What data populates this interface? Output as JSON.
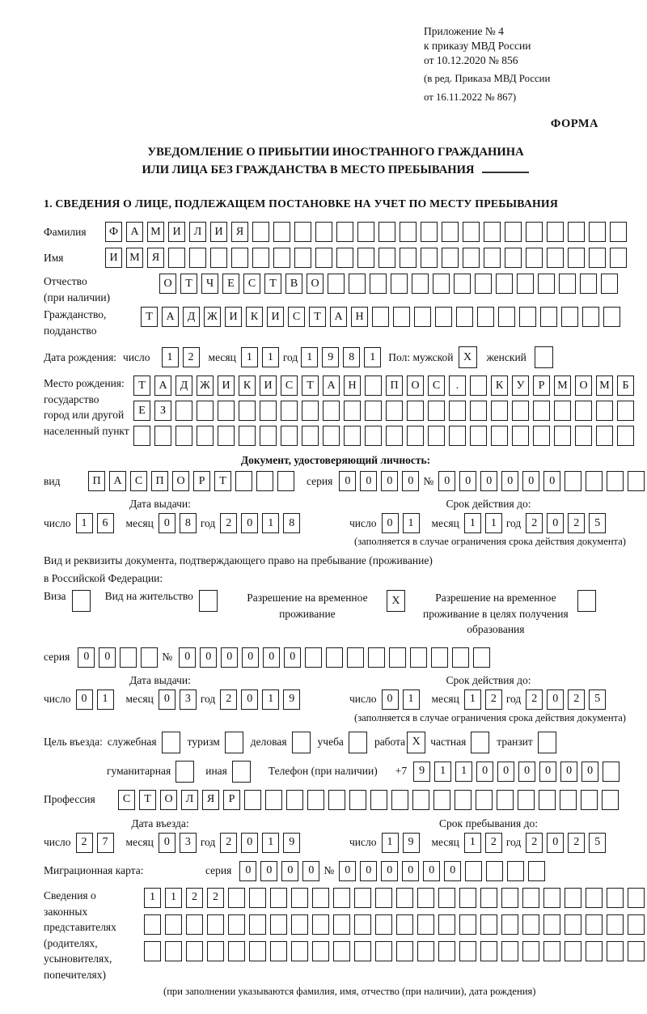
{
  "header": {
    "line1": "Приложение № 4",
    "line2": "к приказу МВД России",
    "line3": "от 10.12.2020 № 856",
    "line4": "(в ред. Приказа МВД России",
    "line5": "от 16.11.2022 № 867)",
    "form_label": "ФОРМА"
  },
  "title": {
    "line1": "УВЕДОМЛЕНИЕ О ПРИБЫТИИ ИНОСТРАННОГО ГРАЖДАНИНА",
    "line2": "ИЛИ ЛИЦА БЕЗ ГРАЖДАНСТВА В МЕСТО ПРЕБЫВАНИЯ"
  },
  "section1_heading": "1. СВЕДЕНИЯ О ЛИЦЕ, ПОДЛЕЖАЩЕМ ПОСТАНОВКЕ НА УЧЕТ ПО МЕСТУ ПРЕБЫВАНИЯ",
  "date_labels": {
    "day": "число",
    "month": "месяц",
    "year": "год"
  },
  "fields": {
    "surname": {
      "label": "Фамилия",
      "value": "ФАМИЛИЯ",
      "count": 25
    },
    "name": {
      "label": "Имя",
      "value": "ИМЯ",
      "count": 25
    },
    "patronymic": {
      "label1": "Отчество",
      "label2": "(при наличии)",
      "value": "ОТЧЕСТВО",
      "count": 22
    },
    "citizenship": {
      "label1": "Гражданство,",
      "label2": "подданство",
      "value": "ТАДЖИКИСТАН",
      "count": 23
    },
    "birth": {
      "label": "Дата рождения:",
      "day": {
        "value": "12",
        "count": 2
      },
      "month": {
        "value": "11",
        "count": 2
      },
      "year": {
        "value": "1981",
        "count": 4
      },
      "sex_label": "Пол: мужской",
      "male": "X",
      "female_label": "женский",
      "female": ""
    },
    "birth_place": {
      "label1": "Место рождения:",
      "label2": "государство",
      "label3": "город или другой",
      "label4": "населенный пункт",
      "row1": {
        "value": "ТАДЖИКИСТАН ПОС. КУРМОМБ",
        "count": 24
      },
      "row2": {
        "value": "ЕЗ",
        "count": 24
      },
      "row3": {
        "value": "",
        "count": 24
      }
    }
  },
  "identity_doc": {
    "heading": "Документ, удостоверяющий личность:",
    "kind_label": "вид",
    "kind": {
      "value": "ПАСПОРТ",
      "count": 10
    },
    "series_label": "серия",
    "series": {
      "value": "0000",
      "count": 4
    },
    "number_label": "№",
    "number": {
      "value": "000000",
      "count": 12
    },
    "issue_heading": "Дата выдачи:",
    "valid_heading": "Срок действия до:",
    "issue": {
      "day": {
        "value": "16",
        "count": 2
      },
      "month": {
        "value": "08",
        "count": 2
      },
      "year": {
        "value": "2018",
        "count": 4
      }
    },
    "valid": {
      "day": {
        "value": "01",
        "count": 2
      },
      "month": {
        "value": "11",
        "count": 2
      },
      "year": {
        "value": "2025",
        "count": 4
      }
    },
    "note": "(заполняется в случае ограничения срока действия документа)"
  },
  "stay_doc": {
    "intro1": "Вид и реквизиты документа, подтверждающего право на пребывание (проживание)",
    "intro2": "в Российской Федерации:",
    "options": [
      {
        "label": "Виза",
        "checked": ""
      },
      {
        "label": "Вид на жительство",
        "checked": ""
      },
      {
        "label": "Разрешение на временное проживание",
        "checked": "X"
      },
      {
        "label": "Разрешение на временное проживание в целях получения образования",
        "checked": ""
      }
    ],
    "series_label": "серия",
    "series": {
      "value": "00",
      "count": 4
    },
    "number_label": "№",
    "number": {
      "value": "000000",
      "count": 15
    },
    "issue_heading": "Дата выдачи:",
    "valid_heading": "Срок действия до:",
    "issue": {
      "day": {
        "value": "01",
        "count": 2
      },
      "month": {
        "value": "03",
        "count": 2
      },
      "year": {
        "value": "2019",
        "count": 4
      }
    },
    "valid": {
      "day": {
        "value": "01",
        "count": 2
      },
      "month": {
        "value": "12",
        "count": 2
      },
      "year": {
        "value": "2025",
        "count": 4
      }
    },
    "note": "(заполняется в случае ограничения срока действия документа)"
  },
  "purpose": {
    "label": "Цель въезда:",
    "options": [
      {
        "label": "служебная",
        "checked": ""
      },
      {
        "label": "туризм",
        "checked": ""
      },
      {
        "label": "деловая",
        "checked": ""
      },
      {
        "label": "учеба",
        "checked": ""
      },
      {
        "label": "работа",
        "checked": "X"
      },
      {
        "label": "частная",
        "checked": ""
      },
      {
        "label": "транзит",
        "checked": ""
      },
      {
        "label": "гуманитарная",
        "checked": ""
      },
      {
        "label": "иная",
        "checked": ""
      }
    ],
    "phone_label": "Телефон (при наличии)",
    "phone_prefix": "+7",
    "phone": {
      "value": "911000000",
      "count": 10
    }
  },
  "profession": {
    "label": "Профессия",
    "value": "СТОЛЯР",
    "count": 24
  },
  "entry": {
    "entry_heading": "Дата въезда:",
    "stay_heading": "Срок пребывания до:",
    "entry_date": {
      "day": {
        "value": "27",
        "count": 2
      },
      "month": {
        "value": "03",
        "count": 2
      },
      "year": {
        "value": "2019",
        "count": 4
      }
    },
    "stay_until": {
      "day": {
        "value": "19",
        "count": 2
      },
      "month": {
        "value": "12",
        "count": 2
      },
      "year": {
        "value": "2025",
        "count": 4
      }
    }
  },
  "migration_card": {
    "label": "Миграционная карта:",
    "series_label": "серия",
    "series": {
      "value": "0000",
      "count": 4
    },
    "number_label": "№",
    "number": {
      "value": "000000",
      "count": 10
    }
  },
  "representatives": {
    "label1": "Сведения о",
    "label2": "законных",
    "label3": "представителях",
    "label4": "(родителях,",
    "label5": "усыновителях,",
    "label6": "попечителях)",
    "row1": {
      "value": "1122",
      "count": 25
    },
    "row2": {
      "value": "",
      "count": 25
    },
    "row3": {
      "value": "",
      "count": 25
    },
    "note": "(при заполнении указываются фамилия, имя, отчество (при наличии), дата рождения)"
  }
}
